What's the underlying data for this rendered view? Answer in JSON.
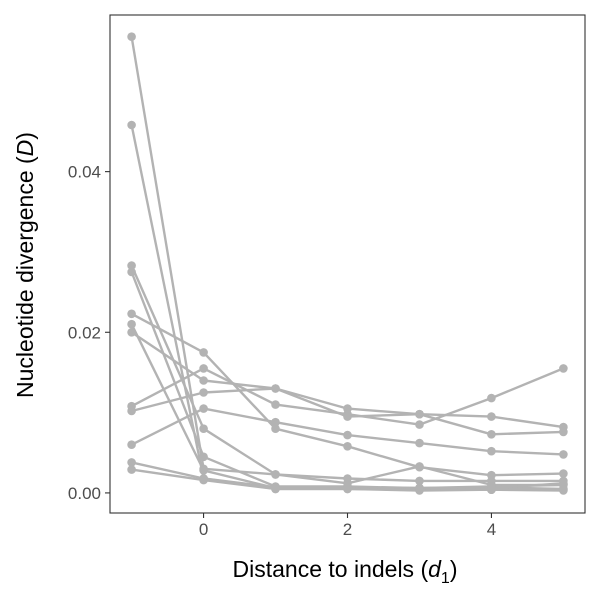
{
  "chart_data": {
    "type": "line",
    "title": "",
    "xlabel": "Distance to indels (d1)",
    "xlabel_parts": {
      "text": "Distance to indels (",
      "var": "d",
      "sub": "1",
      "close": ")"
    },
    "ylabel": "Nucleotide divergence (D)",
    "ylabel_parts": {
      "text": "Nucleotide divergence (",
      "var": "D",
      "close": ")"
    },
    "xlim": [
      -1.3,
      5.3
    ],
    "ylim": [
      -0.0025,
      0.0595
    ],
    "xticks": [
      0,
      2,
      4
    ],
    "xtick_labels": [
      "0",
      "2",
      "4"
    ],
    "yticks": [
      0.0,
      0.02,
      0.04
    ],
    "ytick_labels": [
      "0.00",
      "0.02",
      "0.04"
    ],
    "grid": false,
    "legend": "none",
    "series_color": "#b3b3b3",
    "x": [
      -1,
      0,
      1,
      2,
      3,
      4,
      5
    ],
    "series": [
      {
        "values": [
          0.0568,
          0.003,
          0.0023,
          0.0018,
          0.0015,
          0.0015,
          0.0015
        ]
      },
      {
        "values": [
          0.0458,
          0.0018,
          0.0007,
          0.0007,
          0.0006,
          0.0007,
          0.0005
        ]
      },
      {
        "values": [
          0.0283,
          0.008,
          0.0023,
          0.0012,
          0.0033,
          0.001,
          0.001
        ]
      },
      {
        "values": [
          0.0275,
          0.0045,
          0.0008,
          0.0008,
          0.0006,
          0.0008,
          0.001
        ]
      },
      {
        "values": [
          0.0223,
          0.0175,
          0.008,
          0.0058,
          0.0032,
          0.0022,
          0.0024
        ]
      },
      {
        "values": [
          0.021,
          0.0028,
          0.0006,
          0.0006,
          0.0006,
          0.0006,
          0.0012
        ]
      },
      {
        "values": [
          0.02,
          0.014,
          0.013,
          0.0095,
          0.0098,
          0.0073,
          0.0076
        ]
      },
      {
        "values": [
          0.0108,
          0.0155,
          0.011,
          0.0098,
          0.0085,
          0.0118,
          0.0155
        ]
      },
      {
        "values": [
          0.0102,
          0.0125,
          0.013,
          0.0105,
          0.0098,
          0.0095,
          0.0082
        ]
      },
      {
        "values": [
          0.006,
          0.0105,
          0.0088,
          0.0072,
          0.0062,
          0.0052,
          0.0048
        ]
      },
      {
        "values": [
          0.0038,
          0.0018,
          0.0005,
          0.0005,
          0.0004,
          0.0004,
          0.0003
        ]
      },
      {
        "values": [
          0.0029,
          0.0016,
          0.0005,
          0.0005,
          0.0003,
          0.0004,
          0.0004
        ]
      }
    ]
  }
}
